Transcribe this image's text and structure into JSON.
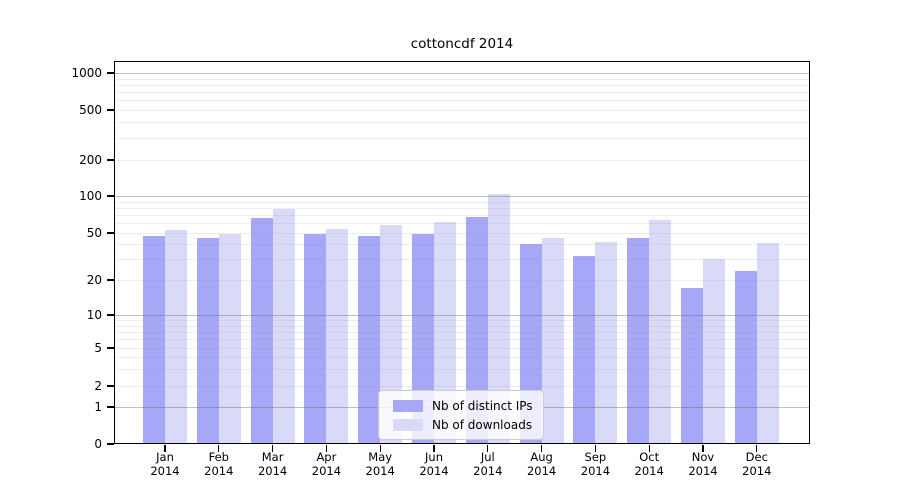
{
  "title": "cottoncdf 2014",
  "legend": {
    "items": [
      {
        "label": "Nb of distinct IPs",
        "color": "#a7a7f7"
      },
      {
        "label": "Nb of downloads",
        "color": "#d9d9f8"
      }
    ]
  },
  "y_axis": {
    "tick_labels": [
      "1000",
      "500",
      "200",
      "100",
      "50",
      "20",
      "10",
      "5",
      "2",
      "1",
      "0"
    ]
  },
  "x_axis": {
    "months": [
      "Jan",
      "Feb",
      "Mar",
      "Apr",
      "May",
      "Jun",
      "Jul",
      "Aug",
      "Sep",
      "Oct",
      "Nov",
      "Dec"
    ],
    "year": "2014"
  },
  "colors": {
    "ips_bar": "#a7a7f7",
    "downloads_bar": "#d9d9f8",
    "major_grid": "#c3c3c3",
    "minor_grid": "#ececec"
  },
  "chart_data": {
    "type": "bar",
    "title": "cottoncdf 2014",
    "categories": [
      "Jan 2014",
      "Feb 2014",
      "Mar 2014",
      "Apr 2014",
      "May 2014",
      "Jun 2014",
      "Jul 2014",
      "Aug 2014",
      "Sep 2014",
      "Oct 2014",
      "Nov 2014",
      "Dec 2014"
    ],
    "series": [
      {
        "name": "Nb of distinct IPs",
        "color": "#a7a7f7",
        "values": [
          47,
          45,
          66,
          49,
          47,
          49,
          67,
          40,
          32,
          45,
          17,
          24
        ]
      },
      {
        "name": "Nb of downloads",
        "color": "#d9d9f8",
        "values": [
          53,
          49,
          78,
          54,
          58,
          62,
          104,
          45,
          42,
          64,
          30,
          41
        ]
      }
    ],
    "xlabel": "",
    "ylabel": "",
    "y_scale": "log-like (symlog with 0 baseline)",
    "y_ticks": [
      0,
      1,
      2,
      5,
      10,
      20,
      50,
      100,
      200,
      500,
      1000
    ],
    "ylim": [
      0,
      1000
    ],
    "grid": "horizontal; major gray lines at 1,10,100,1000; faint minor lines at other log steps; drawn over bars",
    "legend_position": "lower center inside plot"
  }
}
